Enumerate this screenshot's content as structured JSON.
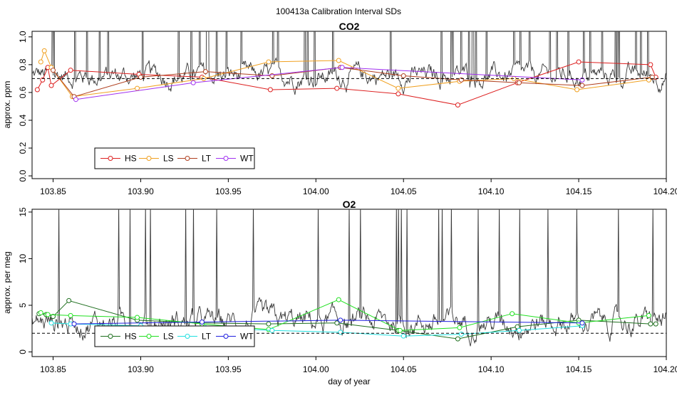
{
  "page_title": "100413a   Calibration Interval SDs",
  "colors": {
    "HS_CO2": "#dd2020",
    "LS_CO2": "#f0a020",
    "LT_CO2": "#b04020",
    "WT_CO2": "#a030f0",
    "HS_O2": "#207020",
    "LS_O2": "#20e020",
    "LT_O2": "#20e0e0",
    "WT_O2": "#2020e0",
    "trace": "#3a3a3a",
    "reference": "#000000"
  },
  "shared_x": {
    "label": "day of year",
    "ticks": [
      "103.85",
      "103.90",
      "103.95",
      "104.00",
      "104.05",
      "104.10",
      "104.15",
      "104.20"
    ],
    "range": [
      103.838,
      104.2
    ]
  },
  "chart_data": [
    {
      "type": "line",
      "title": "CO2",
      "ylabel": "approx. ppm",
      "xlim": [
        103.838,
        104.2
      ],
      "ylim": [
        -0.02,
        1.04
      ],
      "yticks": [
        "0.0",
        "0.2",
        "0.4",
        "0.6",
        "0.8",
        "1.0"
      ],
      "reference_line": 0.7,
      "legend_position": "bottom-left",
      "series": [
        {
          "name": "HS",
          "color_key": "HS_CO2",
          "x": [
            103.841,
            103.844,
            103.847,
            103.849,
            103.86,
            103.899,
            103.935,
            103.974,
            104.012,
            104.047,
            104.081,
            104.115,
            104.15,
            104.191,
            104.194
          ],
          "y": [
            0.62,
            0.69,
            0.78,
            0.65,
            0.76,
            0.73,
            0.71,
            0.62,
            0.63,
            0.59,
            0.51,
            0.67,
            0.82,
            0.8,
            0.71
          ]
        },
        {
          "name": "LS",
          "color_key": "LS_CO2",
          "x": [
            103.843,
            103.845,
            103.849,
            103.861,
            103.898,
            103.936,
            103.973,
            104.013,
            104.047,
            104.082,
            104.113,
            104.149,
            104.19
          ],
          "y": [
            0.82,
            0.9,
            0.78,
            0.57,
            0.63,
            0.7,
            0.82,
            0.83,
            0.63,
            0.68,
            0.7,
            0.62,
            0.69
          ]
        },
        {
          "name": "LT",
          "color_key": "LT_CO2",
          "x": [
            103.85,
            103.862,
            103.9,
            103.937,
            103.975,
            104.014,
            104.05,
            104.083,
            104.116,
            104.152,
            104.192
          ],
          "y": [
            0.76,
            0.57,
            0.71,
            0.75,
            0.72,
            0.78,
            0.72,
            0.69,
            0.67,
            0.65,
            0.71
          ]
        },
        {
          "name": "WT",
          "color_key": "WT_CO2",
          "x": [
            103.863,
            103.93,
            104.015,
            104.152
          ],
          "y": [
            0.55,
            0.67,
            0.78,
            0.69
          ]
        }
      ]
    },
    {
      "type": "line",
      "title": "O2",
      "ylabel": "approx. per meg",
      "xlabel": "day of year",
      "xlim": [
        103.838,
        104.2
      ],
      "ylim": [
        -0.5,
        15.3
      ],
      "yticks": [
        "0",
        "5",
        "10",
        "15"
      ],
      "reference_line": 2.0,
      "legend_position": "bottom-left",
      "series": [
        {
          "name": "HS",
          "color_key": "HS_O2",
          "x": [
            103.842,
            103.846,
            103.85,
            103.859,
            103.898,
            103.935,
            103.973,
            104.012,
            104.047,
            104.081,
            104.115,
            104.15,
            104.191,
            104.194
          ],
          "y": [
            4.1,
            4.0,
            3.8,
            5.5,
            3.4,
            3.1,
            3.0,
            3.1,
            2.3,
            1.4,
            2.7,
            3.4,
            3.0,
            3.0
          ]
        },
        {
          "name": "LS",
          "color_key": "LS_O2",
          "x": [
            103.843,
            103.847,
            103.86,
            103.898,
            103.935,
            103.973,
            104.013,
            104.048,
            104.082,
            104.112,
            104.15,
            104.19
          ],
          "y": [
            4.2,
            4.0,
            3.9,
            3.7,
            3.0,
            2.4,
            5.6,
            2.3,
            2.6,
            4.1,
            3.1,
            3.9
          ]
        },
        {
          "name": "LT",
          "color_key": "LT_O2",
          "x": [
            103.849,
            103.86,
            103.9,
            103.937,
            103.975,
            104.014,
            104.05,
            104.083,
            104.116,
            104.152
          ],
          "y": [
            3.1,
            3.0,
            2.8,
            2.6,
            2.3,
            2.1,
            1.7,
            1.9,
            2.3,
            2.8
          ]
        },
        {
          "name": "WT",
          "color_key": "WT_O2",
          "x": [
            103.862,
            103.935,
            104.014,
            104.152
          ],
          "y": [
            3.0,
            3.2,
            3.4,
            3.1
          ]
        }
      ]
    }
  ]
}
